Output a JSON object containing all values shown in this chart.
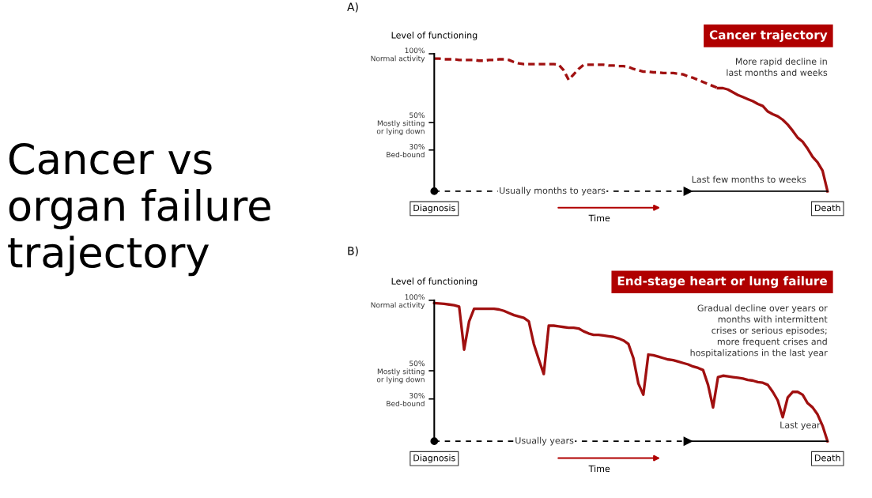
{
  "chart_data": [
    {
      "type": "line",
      "title": "Cancer trajectory",
      "ylabel": "Level of functioning",
      "categories": [
        "Diagnosis",
        null,
        null,
        null,
        null,
        null,
        null,
        null,
        null,
        null,
        null,
        null,
        null,
        null,
        null,
        null,
        null,
        null,
        null,
        null,
        null,
        null,
        null,
        null,
        null,
        null,
        null,
        null,
        null,
        null,
        null,
        null,
        null,
        null,
        null,
        null,
        null,
        null,
        null,
        null,
        null,
        null,
        null,
        null,
        null,
        null,
        null,
        null,
        null,
        null,
        null,
        null,
        null,
        null,
        null,
        null,
        null,
        null,
        null,
        null,
        null,
        null,
        null,
        null,
        null,
        null,
        null,
        null,
        null,
        null,
        null,
        null,
        null,
        null,
        null,
        null,
        null,
        null,
        null,
        "Death"
      ],
      "series": [
        {
          "color": "#a01010",
          "line_style": "dashed",
          "values": [
            96.5,
            96.5,
            96,
            96,
            96,
            95.5,
            95.5,
            95.5,
            95.5,
            95,
            95,
            95.5,
            95.5,
            96,
            96,
            95.5,
            94,
            93,
            92.5,
            92.5,
            92.5,
            92.5,
            92.5,
            92.5,
            92.5,
            92,
            88,
            81,
            85,
            89,
            92,
            92,
            92,
            92,
            92,
            91.5,
            91.5,
            91,
            91,
            90.5,
            89,
            88,
            87,
            87,
            86.5,
            86.5,
            86,
            86,
            86,
            85.5,
            85,
            83.5,
            82.5,
            81,
            79.5,
            78,
            76.5,
            75,
            null,
            null,
            null,
            null,
            null,
            null,
            null,
            null,
            null,
            null,
            null,
            null,
            null,
            null,
            null,
            null,
            null,
            null,
            null,
            null,
            null,
            null
          ]
        },
        {
          "color": "#a01010",
          "line_style": "solid",
          "values": [
            null,
            null,
            null,
            null,
            null,
            null,
            null,
            null,
            null,
            null,
            null,
            null,
            null,
            null,
            null,
            null,
            null,
            null,
            null,
            null,
            null,
            null,
            null,
            null,
            null,
            null,
            null,
            null,
            null,
            null,
            null,
            null,
            null,
            null,
            null,
            null,
            null,
            null,
            null,
            null,
            null,
            null,
            null,
            null,
            null,
            null,
            null,
            null,
            null,
            null,
            null,
            null,
            null,
            null,
            null,
            null,
            null,
            75,
            75,
            74,
            72,
            70,
            68.5,
            67,
            65.5,
            63.5,
            62,
            58,
            56,
            54.5,
            52,
            48.5,
            44,
            39,
            36,
            31,
            25,
            21,
            15,
            0
          ]
        }
      ],
      "ylim": [
        0,
        100
      ],
      "yticks": [
        {
          "value": 100,
          "label": "100%\nNormal activity"
        },
        {
          "value": 50,
          "label": "50%\nMostly sitting\nor lying down"
        },
        {
          "value": 30,
          "label": "30%\nBed-bound"
        }
      ],
      "grid": false,
      "legend": false,
      "annotations": [
        "Cancer vs\norgan failure\ntrajectory",
        "A)",
        "More rapid decline in\nlast months and weeks",
        "Usually months to years",
        "Time",
        "Last few months to weeks"
      ]
    },
    {
      "type": "line",
      "title": "End-stage heart or lung failure",
      "ylabel": "Level of functioning",
      "categories": [
        "Diagnosis",
        null,
        null,
        null,
        null,
        null,
        null,
        null,
        null,
        null,
        null,
        null,
        null,
        null,
        null,
        null,
        null,
        null,
        null,
        null,
        null,
        null,
        null,
        null,
        null,
        null,
        null,
        null,
        null,
        null,
        null,
        null,
        null,
        null,
        null,
        null,
        null,
        null,
        null,
        null,
        null,
        null,
        null,
        null,
        null,
        null,
        null,
        null,
        null,
        null,
        null,
        null,
        null,
        null,
        null,
        null,
        null,
        null,
        null,
        null,
        null,
        null,
        null,
        null,
        null,
        null,
        null,
        null,
        null,
        null,
        null,
        null,
        null,
        null,
        null,
        null,
        null,
        null,
        null,
        "Death"
      ],
      "series": [
        {
          "color": "#a01010",
          "line_style": "solid",
          "values": [
            98,
            97.8,
            97.5,
            97,
            96.5,
            95.5,
            65,
            85,
            94,
            94,
            94,
            94,
            94,
            93.5,
            92.5,
            91,
            89.5,
            88.5,
            87.5,
            85,
            69,
            58,
            47.7,
            82,
            82,
            81.5,
            81,
            80.5,
            80.5,
            80,
            78,
            76.5,
            75.5,
            75.5,
            75,
            74.5,
            74,
            73,
            71.5,
            69,
            59,
            41,
            33,
            61.5,
            61,
            60,
            59,
            58,
            57.5,
            56.5,
            55.5,
            54.5,
            53,
            52,
            50.5,
            40,
            24,
            45.5,
            46.5,
            46,
            45.5,
            45,
            44.5,
            43.5,
            43,
            42,
            41.5,
            40,
            35,
            29,
            17,
            31,
            35,
            35,
            33,
            27,
            24,
            19,
            11,
            0
          ]
        }
      ],
      "ylim": [
        0,
        100
      ],
      "yticks": [
        {
          "value": 100,
          "label": "100%\nNormal activity"
        },
        {
          "value": 50,
          "label": "50%\nMostly sitting\nor lying down"
        },
        {
          "value": 30,
          "label": "30%\nBed-bound"
        }
      ],
      "grid": false,
      "legend": false,
      "annotations": [
        "B)",
        "Gradual decline over years or\nmonths with intermittent\ncrises or serious episodes;\nmore frequent crises and\nhospitalizations in the last year",
        "Usually years",
        "Time",
        "Last year"
      ]
    }
  ]
}
